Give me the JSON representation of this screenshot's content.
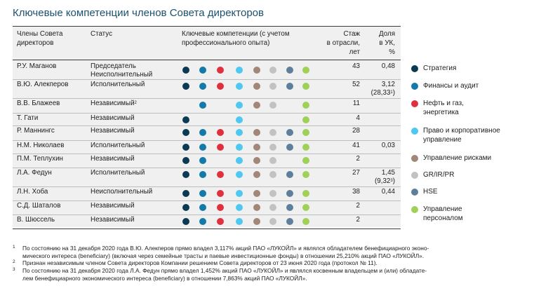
{
  "title": "Ключевые компетенции членов Совета директоров",
  "colors": {
    "strategy": "#0b3a55",
    "finance": "#1479a8",
    "oil": "#e0303d",
    "law": "#4ec8ef",
    "risk": "#a28778",
    "gr": "#c2c2c2",
    "hse": "#5e7f9b",
    "hr": "#9fd05a"
  },
  "table": {
    "headers": {
      "members_line1": "Члены Совета",
      "members_line2": "директоров",
      "status": "Статус",
      "competencies_line1": "Ключевые компетенции (с учетом",
      "competencies_line2": "профессионального опыта)",
      "tenure_line1": "Стаж",
      "tenure_line2": "в отрасли,",
      "tenure_line3": "лет",
      "share_line1": "Доля",
      "share_line2": "в УК,",
      "share_line3": "%"
    },
    "rows": [
      {
        "name": "Р.У. Маганов",
        "status": "Председатель",
        "status2": "Неисполнительный",
        "tenure": "43",
        "share": "0,48",
        "share2": "",
        "competencies": [
          "strategy",
          "finance",
          "oil",
          "law",
          "risk",
          "gr",
          "hse",
          "hr"
        ]
      },
      {
        "name": "В.Ю. Алекперов",
        "status": "Исполнительный",
        "status2": "",
        "tenure": "52",
        "share": "3,12",
        "share2": "(28,33",
        "share2_sup": "1",
        "share2_end": ")",
        "competencies": [
          "strategy",
          "finance",
          "oil",
          "law",
          "risk",
          "gr",
          "hse",
          "hr"
        ]
      },
      {
        "name": "В.В. Блажеев",
        "status": "Независимый",
        "status_sup": "2",
        "status2": "",
        "tenure": "11",
        "share": "",
        "share2": "",
        "competencies": [
          "finance",
          "law",
          "risk",
          "gr",
          "hr"
        ]
      },
      {
        "name": "Т. Гати",
        "status": "Независимый",
        "status2": "",
        "tenure": "4",
        "share": "",
        "share2": "",
        "competencies": [
          "strategy",
          "law",
          "hr"
        ]
      },
      {
        "name": "Р. Маннингс",
        "status": "Независимый",
        "status2": "",
        "tenure": "28",
        "share": "",
        "share2": "",
        "competencies": [
          "strategy",
          "finance",
          "oil",
          "law",
          "risk",
          "gr",
          "hse",
          "hr"
        ]
      },
      {
        "name": "Н.М. Николаев",
        "status": "Исполнительный",
        "status2": "",
        "tenure": "41",
        "share": "0,03",
        "share2": "",
        "competencies": [
          "strategy",
          "finance",
          "oil",
          "law",
          "risk",
          "gr",
          "hse",
          "hr"
        ]
      },
      {
        "name": "П.М. Теплухин",
        "status": "Независимый",
        "status2": "",
        "tenure": "2",
        "share": "",
        "share2": "",
        "competencies": [
          "strategy",
          "finance",
          "law",
          "risk",
          "gr",
          "hr"
        ]
      },
      {
        "name": "Л.А. Федун",
        "status": "Исполнительный",
        "status2": "",
        "tenure": "27",
        "share": "1,45",
        "share2": "(9,32",
        "share2_sup": "3",
        "share2_end": ")",
        "competencies": [
          "strategy",
          "finance",
          "oil",
          "law",
          "risk",
          "gr",
          "hse",
          "hr"
        ]
      },
      {
        "name": "Л.Н. Хоба",
        "status": "Неисполнительный",
        "status2": "",
        "tenure": "38",
        "share": "0,44",
        "share2": "",
        "competencies": [
          "strategy",
          "finance",
          "oil",
          "law",
          "risk",
          "gr",
          "hse",
          "hr"
        ]
      },
      {
        "name": "С.Д. Шаталов",
        "status": "Независимый",
        "status2": "",
        "tenure": "2",
        "share": "",
        "share2": "",
        "competencies": [
          "strategy",
          "finance",
          "oil",
          "law",
          "risk",
          "gr",
          "hse",
          "hr"
        ]
      },
      {
        "name": "В. Шюссель",
        "status": "Независимый",
        "status2": "",
        "tenure": "2",
        "share": "",
        "share2": "",
        "competencies": [
          "strategy",
          "finance",
          "oil",
          "law",
          "risk",
          "gr",
          "hse",
          "hr"
        ]
      }
    ]
  },
  "legend": [
    {
      "key": "strategy",
      "line1": "Стратегия",
      "line2": ""
    },
    {
      "key": "finance",
      "line1": "Финансы и аудит",
      "line2": ""
    },
    {
      "key": "oil",
      "line1": "Нефть и газ,",
      "line2": "энергетика"
    },
    {
      "key": "law",
      "line1": "Право и корпоративное",
      "line2": "управление"
    },
    {
      "key": "risk",
      "line1": "Управление рисками",
      "line2": ""
    },
    {
      "key": "gr",
      "line1": "GR/IR/PR",
      "line2": ""
    },
    {
      "key": "hse",
      "line1": "HSE",
      "line2": ""
    },
    {
      "key": "hr",
      "line1": "Управление",
      "line2": "персоналом"
    }
  ],
  "footnotes": [
    {
      "mark": "1",
      "line1": "По состоянию на 31 декабря 2020 года В.Ю. Алекперов прямо владел 3,117% акций ПАО «ЛУКОЙЛ» и являлся обладателем бенефициарного эконо-",
      "line2": "мического интереса (beneficiary) (включая через семейные трасты и паевые инвестиционные фонды) в отношении 25,210% акций ПАО «ЛУКОЙЛ»."
    },
    {
      "mark": "2",
      "line1": "Признан независимым членом Совета директоров Компании решением Совета директоров от 23 июня 2020 года (протокол № 11).",
      "line2": ""
    },
    {
      "mark": "3",
      "line1": "По состоянию на 31 декабря 2020 года Л.А. Федун прямо владел 1,452% акций ПАО «ЛУКОЙЛ» и являлся косвенным владельцем и (или) обладате-",
      "line2": "лем бенефициарного экономического интереса (beneficiary) в отношении 7,863% акций ПАО «ЛУКОЙЛ»."
    }
  ]
}
